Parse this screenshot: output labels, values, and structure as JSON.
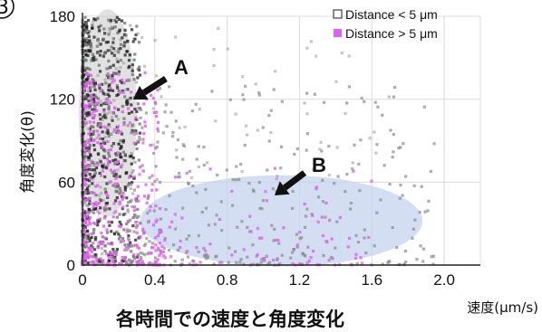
{
  "panel_number": "3",
  "chart_data": {
    "type": "scatter",
    "title": "各時間での速度と角度変化",
    "xlabel": "速度(μm/s)",
    "ylabel": "角度変化(θ)",
    "xlim": [
      0,
      2.2
    ],
    "ylim": [
      0,
      180
    ],
    "x_ticks": [
      "0",
      "0.4",
      "0.8",
      "1.2",
      "1.6",
      "2.0"
    ],
    "y_ticks": [
      "0",
      "60",
      "120",
      "180"
    ],
    "grid": true,
    "legend_position": "top-right",
    "series": [
      {
        "name": "Distance < 5 μm",
        "color": "#606060",
        "marker": "open-square"
      },
      {
        "name": "Distance > 5 μm",
        "color": "#e060f0",
        "marker": "filled-square"
      }
    ],
    "annotations": [
      {
        "label": "A",
        "region": {
          "cx": 0.14,
          "cy": 110,
          "rx": 0.16,
          "ry": 75
        }
      },
      {
        "label": "B",
        "region": {
          "cx": 1.1,
          "cy": 32,
          "rx": 0.78,
          "ry": 33
        }
      }
    ]
  }
}
